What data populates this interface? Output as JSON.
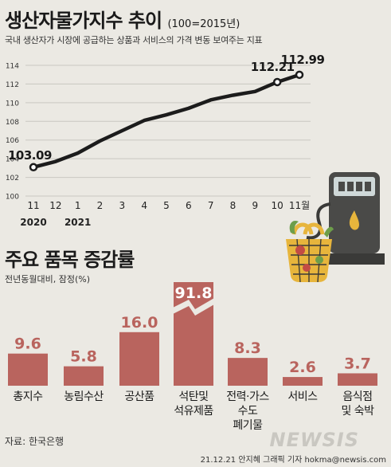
{
  "title_main": "생산자물가지수 추이",
  "title_unit": "(100=2015년)",
  "subtitle": "국내 생산자가 시장에 공급하는 상품과 서비스의 가격 변동 보여주는 지표",
  "section2_title": "주요 품목 증감률",
  "section2_subtitle": "전년동월대비, 잠정(%)",
  "source": "자료: 한국은행",
  "credit": "21.12.21 안지혜 그래픽 기자 hokma@newsis.com",
  "watermark": "NEWSIS",
  "colors": {
    "line": "#1c1c1c",
    "bar": "#b9645e",
    "bar_label": "#ffffff",
    "value_text": "#b9645e",
    "background": "#ebe9e3"
  },
  "chart_data": [
    {
      "type": "line",
      "x": [
        "11",
        "12",
        "1",
        "2",
        "3",
        "4",
        "5",
        "6",
        "7",
        "8",
        "9",
        "10",
        "11월"
      ],
      "year_labels": [
        {
          "index": 0,
          "text": "2020"
        },
        {
          "index": 2,
          "text": "2021"
        }
      ],
      "values": [
        103.09,
        103.7,
        104.6,
        105.9,
        107.0,
        108.1,
        108.7,
        109.4,
        110.3,
        110.8,
        111.2,
        112.21,
        112.99
      ],
      "value_labels": [
        {
          "index": 0,
          "text": "103.09"
        },
        {
          "index": 11,
          "text": "112.21"
        },
        {
          "index": 12,
          "text": "112.99"
        }
      ],
      "yticks": [
        100,
        102,
        104,
        106,
        108,
        110,
        112,
        114
      ],
      "ylim": [
        100,
        114
      ],
      "grid": true
    },
    {
      "type": "bar",
      "categories": [
        [
          "총지수"
        ],
        [
          "농림수산"
        ],
        [
          "공산품"
        ],
        [
          "석탄및",
          "석유제품"
        ],
        [
          "전력·가스",
          "수도",
          "폐기물"
        ],
        [
          "서비스"
        ],
        [
          "음식점",
          "및 숙박"
        ]
      ],
      "values": [
        9.6,
        5.8,
        16.0,
        91.8,
        8.3,
        2.6,
        3.7
      ],
      "value_labels": [
        "9.6",
        "5.8",
        "16.0",
        "91.8",
        "8.3",
        "2.6",
        "3.7"
      ],
      "axis_break": {
        "index": 3
      }
    }
  ]
}
